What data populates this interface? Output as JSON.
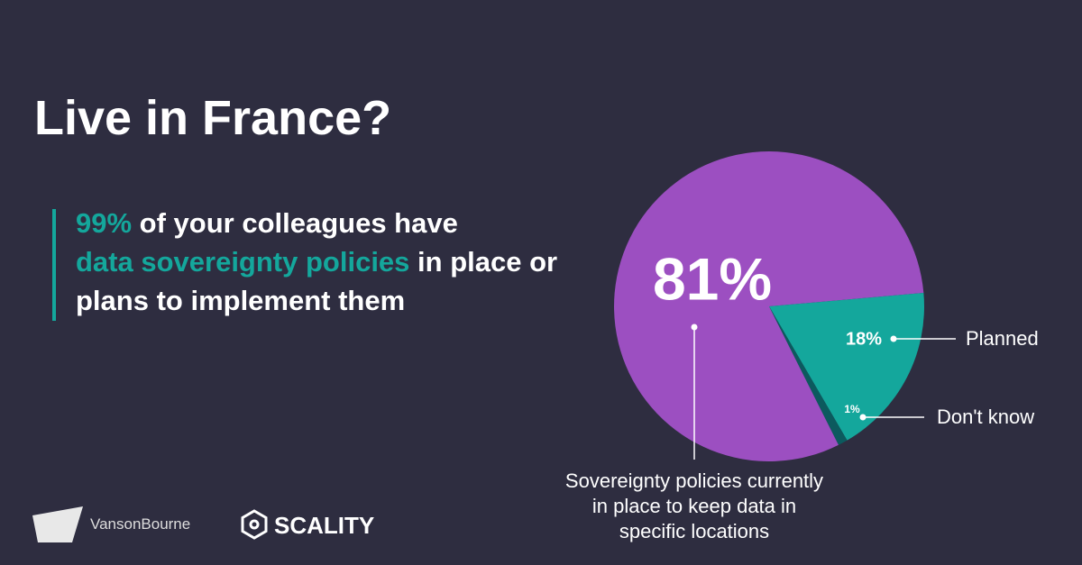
{
  "header": {
    "title": "Live in France?",
    "headline": {
      "highlight1": "99%",
      "text1": "of your colleagues have",
      "highlight2": "data sovereignty policies",
      "text2": "in place or plans to implement them"
    }
  },
  "chart_data": {
    "type": "pie",
    "categories": [
      "Sovereignty policies currently in place to keep data in specific locations",
      "Planned",
      "Don't know"
    ],
    "values": [
      81,
      18,
      1
    ],
    "value_labels": [
      "81%",
      "18%",
      "1%"
    ],
    "colors": [
      "#9c4fc1",
      "#14a79c",
      "#0c5a5e"
    ]
  },
  "footer": {
    "logos": [
      "VansonBourne",
      "SCALITY"
    ]
  }
}
